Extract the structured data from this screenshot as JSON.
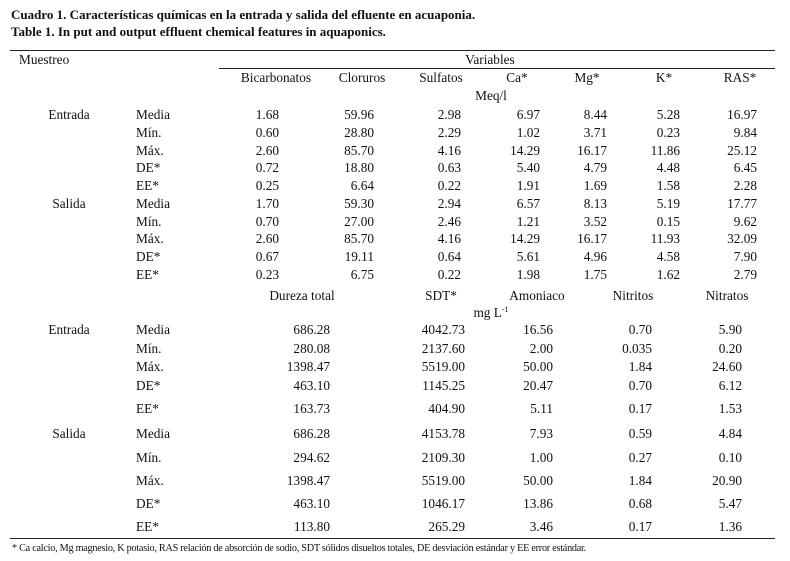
{
  "title_es": "Cuadro 1. Características químicas en la entrada y salida del efluente en acuaponia.",
  "title_en": "Table 1. In put and output effluent chemical features in aquaponics.",
  "header": {
    "muestreo": "Muestreo",
    "variables": "Variables",
    "cols1": [
      "Bicarbonatos",
      "Cloruros",
      "Sulfatos",
      "Ca*",
      "Mg*",
      "K*",
      "RAS*"
    ],
    "unit1": "Meq/l",
    "cols2": [
      "Dureza total",
      "SDT*",
      "Amoniaco",
      "Nitritos",
      "Nitratos"
    ],
    "unit2_base": "mg L",
    "unit2_exp": "-1"
  },
  "section1": {
    "groups": [
      {
        "label": "Entrada",
        "rows": [
          {
            "stat": "Media",
            "values": [
              "1.68",
              "59.96",
              "2.98",
              "6.97",
              "8.44",
              "5.28",
              "16.97"
            ]
          },
          {
            "stat": "Mín.",
            "values": [
              "0.60",
              "28.80",
              "2.29",
              "1.02",
              "3.71",
              "0.23",
              "9.84"
            ]
          },
          {
            "stat": "Máx.",
            "values": [
              "2.60",
              "85.70",
              "4.16",
              "14.29",
              "16.17",
              "11.86",
              "25.12"
            ]
          },
          {
            "stat": "DE*",
            "values": [
              "0.72",
              "18.80",
              "0.63",
              "5.40",
              "4.79",
              "4.48",
              "6.45"
            ]
          },
          {
            "stat": "EE*",
            "values": [
              "0.25",
              "6.64",
              "0.22",
              "1.91",
              "1.69",
              "1.58",
              "2.28"
            ]
          }
        ]
      },
      {
        "label": "Salida",
        "rows": [
          {
            "stat": "Media",
            "values": [
              "1.70",
              "59.30",
              "2.94",
              "6.57",
              "8.13",
              "5.19",
              "17.77"
            ]
          },
          {
            "stat": "Mín.",
            "values": [
              "0.70",
              "27.00",
              "2.46",
              "1.21",
              "3.52",
              "0.15",
              "9.62"
            ]
          },
          {
            "stat": "Máx.",
            "values": [
              "2.60",
              "85.70",
              "4.16",
              "14.29",
              "16.17",
              "11.93",
              "32.09"
            ]
          },
          {
            "stat": "DE*",
            "values": [
              "0.67",
              "19.11",
              "0.64",
              "5.61",
              "4.96",
              "4.58",
              "7.90"
            ]
          },
          {
            "stat": "EE*",
            "values": [
              "0.23",
              "6.75",
              "0.22",
              "1.98",
              "1.75",
              "1.62",
              "2.79"
            ]
          }
        ]
      }
    ]
  },
  "section2": {
    "groups": [
      {
        "label": "Entrada",
        "rows": [
          {
            "stat": "Media",
            "values": [
              "686.28",
              "4042.73",
              "16.56",
              "0.70",
              "5.90"
            ]
          },
          {
            "stat": "Mín.",
            "values": [
              "280.08",
              "2137.60",
              "2.00",
              "0.035",
              "0.20"
            ]
          },
          {
            "stat": "Máx.",
            "values": [
              "1398.47",
              "5519.00",
              "50.00",
              "1.84",
              "24.60"
            ]
          },
          {
            "stat": "DE*",
            "values": [
              "463.10",
              "1145.25",
              "20.47",
              "0.70",
              "6.12"
            ]
          },
          {
            "stat": "EE*",
            "values": [
              "163.73",
              "404.90",
              "5.11",
              "0.17",
              "1.53"
            ]
          }
        ]
      },
      {
        "label": "Salida",
        "rows": [
          {
            "stat": "Media",
            "values": [
              "686.28",
              "4153.78",
              "7.93",
              "0.59",
              "4.84"
            ]
          },
          {
            "stat": "Mín.",
            "values": [
              "294.62",
              "2109.30",
              "1.00",
              "0.27",
              "0.10"
            ]
          },
          {
            "stat": "Máx.",
            "values": [
              "1398.47",
              "5519.00",
              "50.00",
              "1.84",
              "20.90"
            ]
          },
          {
            "stat": "DE*",
            "values": [
              "463.10",
              "1046.17",
              "13.86",
              "0.68",
              "5.47"
            ]
          },
          {
            "stat": "EE*",
            "values": [
              "113.80",
              "265.29",
              "3.46",
              "0.17",
              "1.36"
            ]
          }
        ]
      }
    ]
  },
  "footnote": "* Ca calcio, Mg magnesio, K potasio,  RAS relación de absorción de sodio, SDT sólidos disueltos totales, DE desviación estándar y EE error estándar."
}
